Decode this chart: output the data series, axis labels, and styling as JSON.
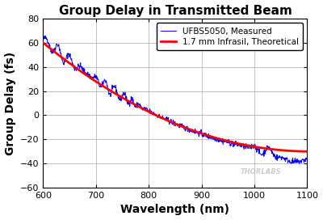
{
  "title": "Group Delay in Transmitted Beam",
  "xlabel": "Wavelength (nm)",
  "ylabel": "Group Delay (fs)",
  "xlim": [
    600,
    1100
  ],
  "ylim": [
    -60,
    80
  ],
  "yticks": [
    -60,
    -40,
    -20,
    0,
    20,
    40,
    60,
    80
  ],
  "xticks": [
    600,
    700,
    800,
    900,
    1000,
    1100
  ],
  "legend": [
    "UFBS5050, Measured",
    "1.7 mm Infrasil, Theoretical"
  ],
  "blue_color": "#0000FF",
  "red_color": "#FF0000",
  "grid_color": "#AAAAAA",
  "bg_color": "#FFFFFF",
  "watermark": "THORLABS",
  "title_fontsize": 11,
  "axis_label_fontsize": 10,
  "tick_fontsize": 8,
  "legend_fontsize": 7.5
}
